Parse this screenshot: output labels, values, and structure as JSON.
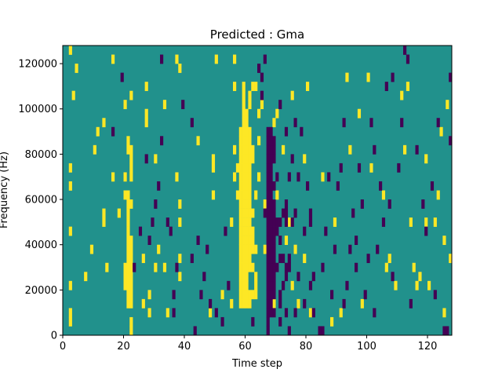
{
  "chart_data": {
    "type": "heatmap",
    "title": "Predicted : Gma",
    "xlabel": "Time step",
    "ylabel": "Frequency (Hz)",
    "xlim": [
      0,
      128
    ],
    "ylim": [
      0,
      128000
    ],
    "x_ticks": [
      0,
      20,
      40,
      60,
      80,
      100,
      120
    ],
    "y_ticks": [
      0,
      20000,
      40000,
      60000,
      80000,
      100000,
      120000
    ],
    "x_tick_labels": [
      "0",
      "20",
      "40",
      "60",
      "80",
      "100",
      "120"
    ],
    "y_tick_labels": [
      "0",
      "20000",
      "40000",
      "60000",
      "80000",
      "100000",
      "120000"
    ],
    "levels": [
      0,
      1,
      2
    ],
    "colormap": [
      "#440154",
      "#21918c",
      "#fde725"
    ],
    "background_level": 1,
    "rows": 32,
    "row_height_hz": 4000,
    "yellow_cells": [
      [
        2,
        1
      ],
      [
        2,
        2
      ],
      [
        2,
        5
      ],
      [
        2,
        11
      ],
      [
        2,
        16
      ],
      [
        2,
        18
      ],
      [
        2,
        31
      ],
      [
        3,
        26
      ],
      [
        4,
        29
      ],
      [
        7,
        6
      ],
      [
        9,
        9
      ],
      [
        10,
        20
      ],
      [
        11,
        22
      ],
      [
        13,
        12
      ],
      [
        13,
        13
      ],
      [
        13,
        23
      ],
      [
        14,
        7
      ],
      [
        16,
        17
      ],
      [
        16,
        30
      ],
      [
        18,
        13
      ],
      [
        20,
        5
      ],
      [
        20,
        6
      ],
      [
        20,
        7
      ],
      [
        20,
        15
      ],
      [
        20,
        17
      ],
      [
        20,
        25
      ],
      [
        21,
        3
      ],
      [
        21,
        4
      ],
      [
        21,
        5
      ],
      [
        21,
        6
      ],
      [
        21,
        7
      ],
      [
        21,
        8
      ],
      [
        21,
        9
      ],
      [
        21,
        10
      ],
      [
        21,
        11
      ],
      [
        21,
        12
      ],
      [
        21,
        13
      ],
      [
        21,
        14
      ],
      [
        21,
        15
      ],
      [
        21,
        20
      ],
      [
        21,
        21
      ],
      [
        22,
        0
      ],
      [
        22,
        1
      ],
      [
        22,
        3
      ],
      [
        22,
        4
      ],
      [
        22,
        5
      ],
      [
        22,
        6
      ],
      [
        22,
        7
      ],
      [
        22,
        8
      ],
      [
        22,
        9
      ],
      [
        22,
        10
      ],
      [
        22,
        14
      ],
      [
        22,
        17
      ],
      [
        22,
        18
      ],
      [
        22,
        19
      ],
      [
        22,
        20
      ],
      [
        22,
        26
      ],
      [
        26,
        3
      ],
      [
        26,
        8
      ],
      [
        27,
        23
      ],
      [
        27,
        24
      ],
      [
        27,
        27
      ],
      [
        28,
        2
      ],
      [
        28,
        4
      ],
      [
        30,
        7
      ],
      [
        30,
        19
      ],
      [
        31,
        9
      ],
      [
        33,
        7
      ],
      [
        33,
        25
      ],
      [
        34,
        2
      ],
      [
        37,
        17
      ],
      [
        37,
        30
      ],
      [
        38,
        29
      ],
      [
        38,
        6
      ],
      [
        38,
        12
      ],
      [
        38,
        14
      ],
      [
        38,
        8
      ],
      [
        44,
        21
      ],
      [
        48,
        2
      ],
      [
        49,
        18
      ],
      [
        49,
        19
      ],
      [
        49,
        15
      ],
      [
        50,
        30
      ],
      [
        52,
        4
      ],
      [
        55,
        12
      ],
      [
        55,
        3
      ],
      [
        56,
        17
      ],
      [
        56,
        27
      ],
      [
        56,
        20
      ],
      [
        56,
        30
      ],
      [
        57,
        15
      ],
      [
        57,
        18
      ],
      [
        58,
        3
      ],
      [
        58,
        4
      ],
      [
        58,
        5
      ],
      [
        58,
        6
      ],
      [
        58,
        7
      ],
      [
        58,
        8
      ],
      [
        58,
        9
      ],
      [
        58,
        10
      ],
      [
        58,
        11
      ],
      [
        58,
        12
      ],
      [
        58,
        13
      ],
      [
        58,
        14
      ],
      [
        58,
        15
      ],
      [
        58,
        16
      ],
      [
        58,
        17
      ],
      [
        58,
        18
      ],
      [
        58,
        19
      ],
      [
        58,
        20
      ],
      [
        58,
        21
      ],
      [
        58,
        22
      ],
      [
        59,
        3
      ],
      [
        59,
        4
      ],
      [
        59,
        5
      ],
      [
        59,
        6
      ],
      [
        59,
        7
      ],
      [
        59,
        8
      ],
      [
        59,
        9
      ],
      [
        59,
        10
      ],
      [
        59,
        11
      ],
      [
        59,
        12
      ],
      [
        59,
        13
      ],
      [
        59,
        14
      ],
      [
        59,
        15
      ],
      [
        59,
        16
      ],
      [
        59,
        17
      ],
      [
        59,
        18
      ],
      [
        59,
        19
      ],
      [
        59,
        20
      ],
      [
        59,
        21
      ],
      [
        59,
        22
      ],
      [
        59,
        23
      ],
      [
        59,
        24
      ],
      [
        59,
        25
      ],
      [
        59,
        26
      ],
      [
        59,
        27
      ],
      [
        60,
        3
      ],
      [
        60,
        4
      ],
      [
        60,
        5
      ],
      [
        60,
        6
      ],
      [
        60,
        7
      ],
      [
        60,
        8
      ],
      [
        60,
        9
      ],
      [
        60,
        10
      ],
      [
        60,
        11
      ],
      [
        60,
        12
      ],
      [
        60,
        13
      ],
      [
        60,
        14
      ],
      [
        60,
        15
      ],
      [
        60,
        16
      ],
      [
        60,
        17
      ],
      [
        60,
        18
      ],
      [
        60,
        19
      ],
      [
        60,
        20
      ],
      [
        60,
        21
      ],
      [
        60,
        22
      ],
      [
        60,
        23
      ],
      [
        60,
        24
      ],
      [
        61,
        3
      ],
      [
        61,
        4
      ],
      [
        61,
        7
      ],
      [
        61,
        8
      ],
      [
        61,
        9
      ],
      [
        61,
        10
      ],
      [
        61,
        11
      ],
      [
        61,
        12
      ],
      [
        61,
        13
      ],
      [
        61,
        14
      ],
      [
        61,
        15
      ],
      [
        61,
        16
      ],
      [
        61,
        17
      ],
      [
        61,
        18
      ],
      [
        61,
        19
      ],
      [
        61,
        20
      ],
      [
        61,
        21
      ],
      [
        61,
        22
      ],
      [
        61,
        25
      ],
      [
        61,
        26
      ],
      [
        62,
        4
      ],
      [
        62,
        7
      ],
      [
        62,
        9
      ],
      [
        62,
        10
      ],
      [
        62,
        11
      ],
      [
        62,
        13
      ],
      [
        62,
        19
      ],
      [
        62,
        20
      ],
      [
        62,
        27
      ],
      [
        63,
        4
      ],
      [
        63,
        5
      ],
      [
        63,
        6
      ],
      [
        63,
        9
      ],
      [
        63,
        15
      ],
      [
        63,
        27
      ],
      [
        64,
        24
      ],
      [
        64,
        21
      ],
      [
        64,
        17
      ],
      [
        65,
        25
      ],
      [
        66,
        9
      ],
      [
        66,
        14
      ],
      [
        69,
        23
      ],
      [
        69,
        3
      ],
      [
        70,
        15
      ],
      [
        70,
        24
      ],
      [
        72,
        20
      ],
      [
        73,
        10
      ],
      [
        74,
        12
      ],
      [
        75,
        5
      ],
      [
        75,
        26
      ],
      [
        76,
        9
      ],
      [
        77,
        3
      ],
      [
        79,
        8
      ],
      [
        79,
        19
      ],
      [
        80,
        27
      ],
      [
        81,
        2
      ],
      [
        85,
        17
      ],
      [
        88,
        1
      ],
      [
        89,
        12
      ],
      [
        91,
        2
      ],
      [
        93,
        28
      ],
      [
        94,
        20
      ],
      [
        97,
        24
      ],
      [
        98,
        3
      ],
      [
        100,
        28
      ],
      [
        101,
        18
      ],
      [
        105,
        15
      ],
      [
        106,
        7
      ],
      [
        107,
        8
      ],
      [
        109,
        5
      ],
      [
        111,
        26
      ],
      [
        112,
        20
      ],
      [
        113,
        27
      ],
      [
        114,
        12
      ],
      [
        115,
        7
      ],
      [
        116,
        5
      ],
      [
        117,
        6
      ],
      [
        119,
        12
      ],
      [
        119,
        19
      ],
      [
        120,
        5
      ],
      [
        122,
        12
      ],
      [
        123,
        15
      ],
      [
        124,
        22
      ],
      [
        125,
        2
      ],
      [
        125,
        10
      ],
      [
        126,
        25
      ],
      [
        127,
        8
      ]
    ],
    "purple_cells": [
      [
        16,
        22
      ],
      [
        19,
        28
      ],
      [
        23,
        7
      ],
      [
        25,
        11
      ],
      [
        27,
        19
      ],
      [
        28,
        10
      ],
      [
        29,
        12
      ],
      [
        30,
        14
      ],
      [
        31,
        16
      ],
      [
        32,
        21
      ],
      [
        32,
        30
      ],
      [
        34,
        12
      ],
      [
        35,
        11
      ],
      [
        36,
        4
      ],
      [
        36,
        2
      ],
      [
        37,
        7
      ],
      [
        39,
        25
      ],
      [
        42,
        8
      ],
      [
        42,
        23
      ],
      [
        43,
        0
      ],
      [
        44,
        10
      ],
      [
        45,
        4
      ],
      [
        46,
        6
      ],
      [
        47,
        9
      ],
      [
        48,
        3
      ],
      [
        50,
        2
      ],
      [
        52,
        1
      ],
      [
        53,
        11
      ],
      [
        54,
        5
      ],
      [
        62,
        1
      ],
      [
        64,
        29
      ],
      [
        65,
        28
      ],
      [
        65,
        26
      ],
      [
        66,
        13
      ],
      [
        66,
        30
      ],
      [
        67,
        0
      ],
      [
        67,
        1
      ],
      [
        67,
        2
      ],
      [
        67,
        3
      ],
      [
        67,
        4
      ],
      [
        67,
        5
      ],
      [
        67,
        6
      ],
      [
        67,
        7
      ],
      [
        67,
        8
      ],
      [
        67,
        9
      ],
      [
        67,
        10
      ],
      [
        67,
        11
      ],
      [
        67,
        12
      ],
      [
        67,
        13
      ],
      [
        67,
        14
      ],
      [
        67,
        15
      ],
      [
        67,
        16
      ],
      [
        67,
        17
      ],
      [
        67,
        18
      ],
      [
        67,
        19
      ],
      [
        67,
        20
      ],
      [
        67,
        21
      ],
      [
        67,
        22
      ],
      [
        68,
        2
      ],
      [
        68,
        3
      ],
      [
        68,
        4
      ],
      [
        68,
        5
      ],
      [
        68,
        6
      ],
      [
        68,
        7
      ],
      [
        68,
        8
      ],
      [
        68,
        9
      ],
      [
        68,
        10
      ],
      [
        68,
        11
      ],
      [
        68,
        12
      ],
      [
        68,
        13
      ],
      [
        68,
        14
      ],
      [
        68,
        15
      ],
      [
        68,
        16
      ],
      [
        68,
        17
      ],
      [
        68,
        18
      ],
      [
        68,
        19
      ],
      [
        68,
        20
      ],
      [
        68,
        21
      ],
      [
        68,
        22
      ],
      [
        69,
        2
      ],
      [
        69,
        4
      ],
      [
        69,
        5
      ],
      [
        69,
        6
      ],
      [
        69,
        7
      ],
      [
        69,
        8
      ],
      [
        69,
        9
      ],
      [
        69,
        10
      ],
      [
        69,
        11
      ],
      [
        69,
        12
      ],
      [
        69,
        13
      ],
      [
        69,
        14
      ],
      [
        69,
        16
      ],
      [
        69,
        19
      ],
      [
        69,
        20
      ],
      [
        69,
        21
      ],
      [
        70,
        7
      ],
      [
        70,
        11
      ],
      [
        70,
        12
      ],
      [
        70,
        17
      ],
      [
        71,
        1
      ],
      [
        71,
        3
      ],
      [
        71,
        4
      ],
      [
        71,
        8
      ],
      [
        71,
        10
      ],
      [
        71,
        12
      ],
      [
        71,
        25
      ],
      [
        72,
        5
      ],
      [
        72,
        8
      ],
      [
        72,
        13
      ],
      [
        73,
        2
      ],
      [
        73,
        6
      ],
      [
        73,
        7
      ],
      [
        73,
        12
      ],
      [
        73,
        13
      ],
      [
        73,
        14
      ],
      [
        73,
        22
      ],
      [
        74,
        0
      ],
      [
        74,
        7
      ],
      [
        74,
        8
      ],
      [
        74,
        17
      ],
      [
        75,
        12
      ],
      [
        75,
        19
      ],
      [
        76,
        2
      ],
      [
        76,
        13
      ],
      [
        76,
        23
      ],
      [
        77,
        6
      ],
      [
        77,
        17
      ],
      [
        78,
        22
      ],
      [
        79,
        3
      ],
      [
        79,
        11
      ],
      [
        80,
        16
      ],
      [
        81,
        12
      ],
      [
        81,
        5
      ],
      [
        81,
        13
      ],
      [
        82,
        6
      ],
      [
        82,
        2
      ],
      [
        84,
        0
      ],
      [
        85,
        0
      ],
      [
        85,
        7
      ],
      [
        86,
        11
      ],
      [
        87,
        17
      ],
      [
        88,
        4
      ],
      [
        89,
        9
      ],
      [
        90,
        16
      ],
      [
        91,
        18
      ],
      [
        92,
        3
      ],
      [
        92,
        23
      ],
      [
        93,
        5
      ],
      [
        94,
        9
      ],
      [
        95,
        13
      ],
      [
        96,
        7
      ],
      [
        96,
        10
      ],
      [
        97,
        18
      ],
      [
        98,
        14
      ],
      [
        99,
        4
      ],
      [
        100,
        8
      ],
      [
        101,
        23
      ],
      [
        102,
        2
      ],
      [
        102,
        20
      ],
      [
        103,
        9
      ],
      [
        104,
        16
      ],
      [
        105,
        12
      ],
      [
        106,
        27
      ],
      [
        107,
        14
      ],
      [
        108,
        6
      ],
      [
        108,
        28
      ],
      [
        110,
        18
      ],
      [
        111,
        23
      ],
      [
        112,
        31
      ],
      [
        113,
        30
      ],
      [
        114,
        3
      ],
      [
        116,
        20
      ],
      [
        118,
        14
      ],
      [
        119,
        11
      ],
      [
        121,
        16
      ],
      [
        122,
        4
      ],
      [
        123,
        23
      ],
      [
        125,
        0
      ],
      [
        126,
        0
      ],
      [
        127,
        28
      ],
      [
        127,
        21
      ]
    ]
  }
}
